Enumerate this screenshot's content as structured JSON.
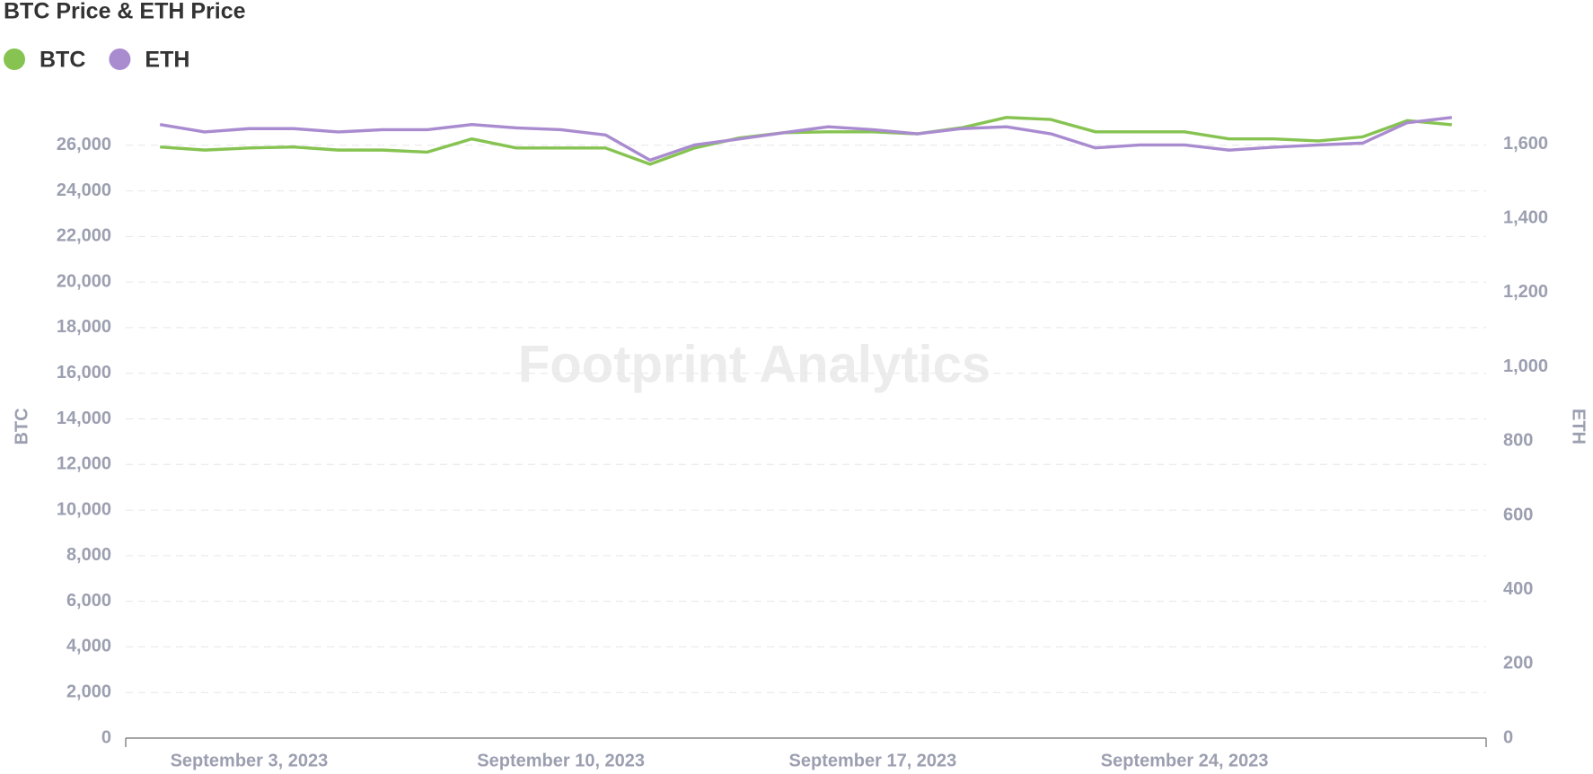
{
  "chart_data": {
    "type": "line",
    "title": "BTC Price & ETH Price",
    "watermark": "Footprint Analytics",
    "y_label": "BTC",
    "y2_label": "ETH",
    "grid": true,
    "legend": "top-left",
    "x": [
      "2023-09-01",
      "2023-09-02",
      "2023-09-03",
      "2023-09-04",
      "2023-09-05",
      "2023-09-06",
      "2023-09-07",
      "2023-09-08",
      "2023-09-09",
      "2023-09-10",
      "2023-09-11",
      "2023-09-12",
      "2023-09-13",
      "2023-09-14",
      "2023-09-15",
      "2023-09-16",
      "2023-09-17",
      "2023-09-18",
      "2023-09-19",
      "2023-09-20",
      "2023-09-21",
      "2023-09-22",
      "2023-09-23",
      "2023-09-24",
      "2023-09-25",
      "2023-09-26",
      "2023-09-27",
      "2023-09-28",
      "2023-09-29",
      "2023-09-30"
    ],
    "xticks": [
      {
        "value": "2023-09-03",
        "label": "September 3, 2023"
      },
      {
        "value": "2023-09-10",
        "label": "September 10, 2023"
      },
      {
        "value": "2023-09-17",
        "label": "September 17, 2023"
      },
      {
        "value": "2023-09-24",
        "label": "September 24, 2023"
      }
    ],
    "series": [
      {
        "name": "BTC",
        "color": "#86c351",
        "axis": "y",
        "values": [
          25925,
          25790,
          25880,
          25925,
          25790,
          25790,
          25700,
          26280,
          25880,
          25880,
          25880,
          25170,
          25880,
          26320,
          26550,
          26590,
          26590,
          26500,
          26770,
          27220,
          27130,
          26590,
          26590,
          26590,
          26280,
          26280,
          26190,
          26370,
          27080,
          26900
        ]
      },
      {
        "name": "ETH",
        "color": "#a98bcf",
        "axis": "y2",
        "values": [
          1653,
          1633,
          1642,
          1642,
          1633,
          1639,
          1639,
          1653,
          1644,
          1639,
          1625,
          1557,
          1598,
          1614,
          1631,
          1647,
          1639,
          1628,
          1642,
          1647,
          1628,
          1590,
          1598,
          1598,
          1584,
          1592,
          1598,
          1603,
          1658,
          1672
        ]
      }
    ],
    "ylim": [
      0,
      28000
    ],
    "yticks": [
      0,
      {
        "value": 2000,
        "label": "2,000"
      },
      {
        "value": 4000,
        "label": "4,000"
      },
      {
        "value": 6000,
        "label": "6,000"
      },
      {
        "value": 8000,
        "label": "8,000"
      },
      {
        "value": 10000,
        "label": "10,000"
      },
      {
        "value": 12000,
        "label": "12,000"
      },
      {
        "value": 14000,
        "label": "14,000"
      },
      {
        "value": 16000,
        "label": "16,000"
      },
      {
        "value": 18000,
        "label": "18,000"
      },
      {
        "value": 20000,
        "label": "20,000"
      },
      {
        "value": 22000,
        "label": "22,000"
      },
      {
        "value": 24000,
        "label": "24,000"
      },
      {
        "value": 26000,
        "label": "26,000"
      }
    ],
    "y2lim": [
      0,
      1720
    ],
    "y2ticks": [
      0,
      200,
      400,
      600,
      800,
      {
        "value": 1000,
        "label": "1,000"
      },
      {
        "value": 1200,
        "label": "1,200"
      },
      {
        "value": 1400,
        "label": "1,400"
      },
      {
        "value": 1600,
        "label": "1,600"
      }
    ]
  }
}
